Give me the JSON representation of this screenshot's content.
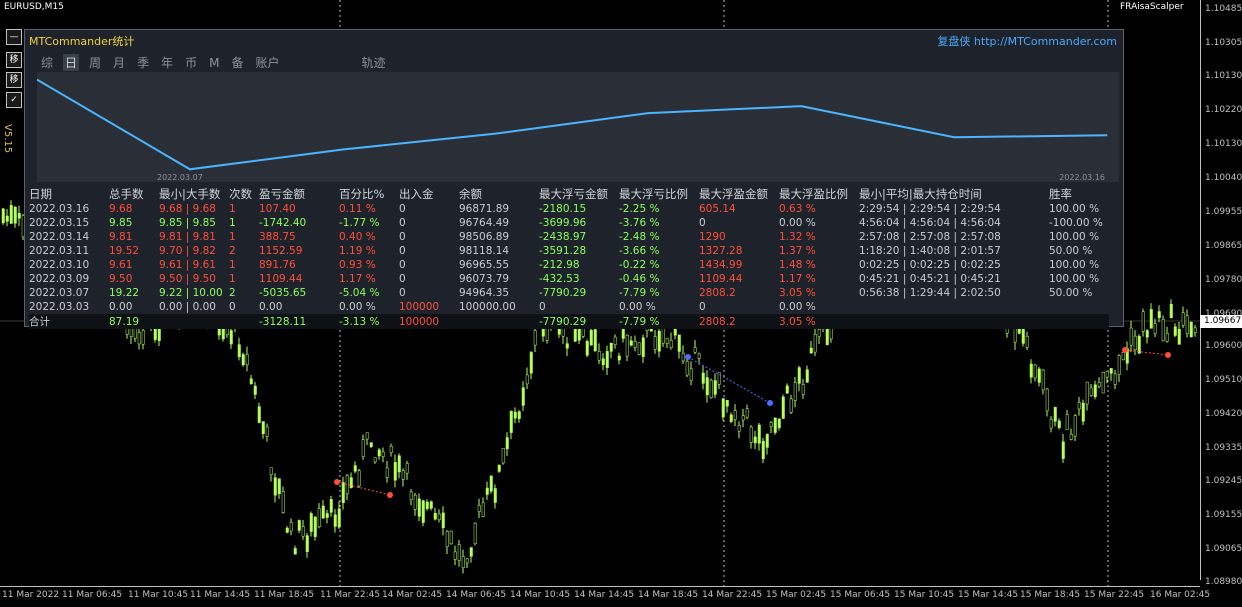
{
  "chart": {
    "symbol": "EURUSD,M15",
    "ea_name": "FRAisaScalper",
    "version": "V5.15",
    "side_buttons": [
      "—",
      "移",
      "移",
      "✓",
      "↙"
    ],
    "current_price": "1.09667",
    "price_labels": [
      "1.10485",
      "1.10305",
      "1.10130",
      "1.10220",
      "1.10130",
      "1.10040",
      "1.09955",
      "1.09865",
      "1.09780",
      "1.09690",
      "1.09600",
      "1.09510",
      "1.09420",
      "1.09335",
      "1.09245",
      "1.09155",
      "1.09065",
      "1.08980"
    ],
    "time_labels": [
      "11 Mar 2022",
      "11 Mar 06:45",
      "11 Mar 10:45",
      "11 Mar 14:45",
      "11 Mar 18:45",
      "11 Mar 22:45",
      "14 Mar 02:45",
      "14 Mar 06:45",
      "14 Mar 10:45",
      "14 Mar 14:45",
      "14 Mar 18:45",
      "14 Mar 22:45",
      "15 Mar 02:45",
      "15 Mar 06:45",
      "15 Mar 10:45",
      "15 Mar 14:45",
      "15 Mar 18:45",
      "15 Mar 22:45",
      "16 Mar 02:45"
    ]
  },
  "panel": {
    "title": "MTCommander统计",
    "link": "复盘侠 http://MTCommander.com",
    "tabs": [
      "综",
      "日",
      "周",
      "月",
      "季",
      "年",
      "币",
      "M",
      "备",
      "账户",
      "轨迹"
    ],
    "active_tab": "日",
    "graph_dates": [
      "2022.03.07",
      "2022.03.16"
    ],
    "columns": [
      "日期",
      "总手数",
      "最小|大手数",
      "次数",
      "盈亏金额",
      "百分比%",
      "出入金",
      "余额",
      "最大浮亏金额",
      "最大浮亏比例",
      "最大浮盈金额",
      "最大浮盈比例",
      "最小|平均|最大持仓时间",
      "胜率"
    ],
    "rows": [
      [
        "2022.03.16",
        "9.68",
        "9.68 | 9.68",
        "1",
        "107.40",
        "0.11 %",
        "0",
        "96871.89",
        "-2180.15",
        "-2.25 %",
        "605.14",
        "0.63 %",
        "2:29:54 | 2:29:54 | 2:29:54",
        "100.00 %"
      ],
      [
        "2022.03.15",
        "9.85",
        "9.85 | 9.85",
        "1",
        "-1742.40",
        "-1.77 %",
        "0",
        "96764.49",
        "-3699.96",
        "-3.76 %",
        "0",
        "0.00 %",
        "4:56:04 | 4:56:04 | 4:56:04",
        "-100.00 %"
      ],
      [
        "2022.03.14",
        "9.81",
        "9.81 | 9.81",
        "1",
        "388.75",
        "0.40 %",
        "0",
        "98506.89",
        "-2438.97",
        "-2.48 %",
        "1290",
        "1.32 %",
        "2:57:08 | 2:57:08 | 2:57:08",
        "100.00 %"
      ],
      [
        "2022.03.11",
        "19.52",
        "9.70 | 9.82",
        "2",
        "1152.59",
        "1.19 %",
        "0",
        "98118.14",
        "-3591.28",
        "-3.66 %",
        "1327.28",
        "1.37 %",
        "1:18:20 | 1:40:08 | 2:01:57",
        "50.00 %"
      ],
      [
        "2022.03.10",
        "9.61",
        "9.61 | 9.61",
        "1",
        "891.76",
        "0.93 %",
        "0",
        "96965.55",
        "-212.98",
        "-0.22 %",
        "1434.99",
        "1.48 %",
        "0:02:25 | 0:02:25 | 0:02:25",
        "100.00 %"
      ],
      [
        "2022.03.09",
        "9.50",
        "9.50 | 9.50",
        "1",
        "1109.44",
        "1.17 %",
        "0",
        "96073.79",
        "-432.53",
        "-0.46 %",
        "1109.44",
        "1.17 %",
        "0:45:21 | 0:45:21 | 0:45:21",
        "100.00 %"
      ],
      [
        "2022.03.07",
        "19.22",
        "9.22 | 10.00",
        "2",
        "-5035.65",
        "-5.04 %",
        "0",
        "94964.35",
        "-7790.29",
        "-7.79 %",
        "2808.2",
        "3.05 %",
        "0:56:38 | 1:29:44 | 2:02:50",
        "50.00 %"
      ],
      [
        "2022.03.03",
        "0.00",
        "0.00 | 0.00",
        "0",
        "0.00",
        "0.00 %",
        "100000",
        "100000.00",
        "0",
        "0.00 %",
        "0",
        "0.00 %",
        "",
        ""
      ]
    ],
    "row_colors": [
      [
        "w",
        "r",
        "r",
        "r",
        "r",
        "r",
        "w",
        "w",
        "g",
        "g",
        "r",
        "r",
        "w",
        "w"
      ],
      [
        "w",
        "g",
        "g",
        "g",
        "g",
        "g",
        "w",
        "w",
        "g",
        "g",
        "w",
        "w",
        "w",
        "w"
      ],
      [
        "w",
        "r",
        "r",
        "r",
        "r",
        "r",
        "w",
        "w",
        "g",
        "g",
        "r",
        "r",
        "w",
        "w"
      ],
      [
        "w",
        "r",
        "r",
        "r",
        "r",
        "r",
        "w",
        "w",
        "g",
        "g",
        "r",
        "r",
        "w",
        "w"
      ],
      [
        "w",
        "r",
        "r",
        "r",
        "r",
        "r",
        "w",
        "w",
        "g",
        "g",
        "r",
        "r",
        "w",
        "w"
      ],
      [
        "w",
        "r",
        "r",
        "r",
        "r",
        "r",
        "w",
        "w",
        "g",
        "g",
        "r",
        "r",
        "w",
        "w"
      ],
      [
        "w",
        "g",
        "g",
        "g",
        "g",
        "g",
        "w",
        "w",
        "g",
        "g",
        "r",
        "r",
        "w",
        "w"
      ],
      [
        "w",
        "w",
        "w",
        "w",
        "w",
        "w",
        "r",
        "w",
        "w",
        "w",
        "w",
        "w",
        "w",
        "w"
      ]
    ],
    "total": [
      "合计",
      "87.19",
      "",
      "",
      "-3128.11",
      "-3.13 %",
      "100000",
      "",
      "-7790.29",
      "-7.79 %",
      "2808.2",
      "3.05 %",
      "",
      ""
    ],
    "total_colors": [
      "w",
      "g",
      "w",
      "w",
      "g",
      "g",
      "r",
      "w",
      "g",
      "g",
      "r",
      "r",
      "w",
      "w"
    ]
  },
  "equity_curve": {
    "type": "line",
    "values": [
      100000,
      94964.35,
      96073.79,
      96965.55,
      98118.14,
      98506.89,
      96764.49,
      96871.89
    ],
    "ylim": [
      94700,
      100200
    ]
  },
  "colors": {
    "bull": "#b4ff5a",
    "line": "#4ab4ff",
    "red": "#ff4d3a",
    "green": "#8cff5a"
  }
}
